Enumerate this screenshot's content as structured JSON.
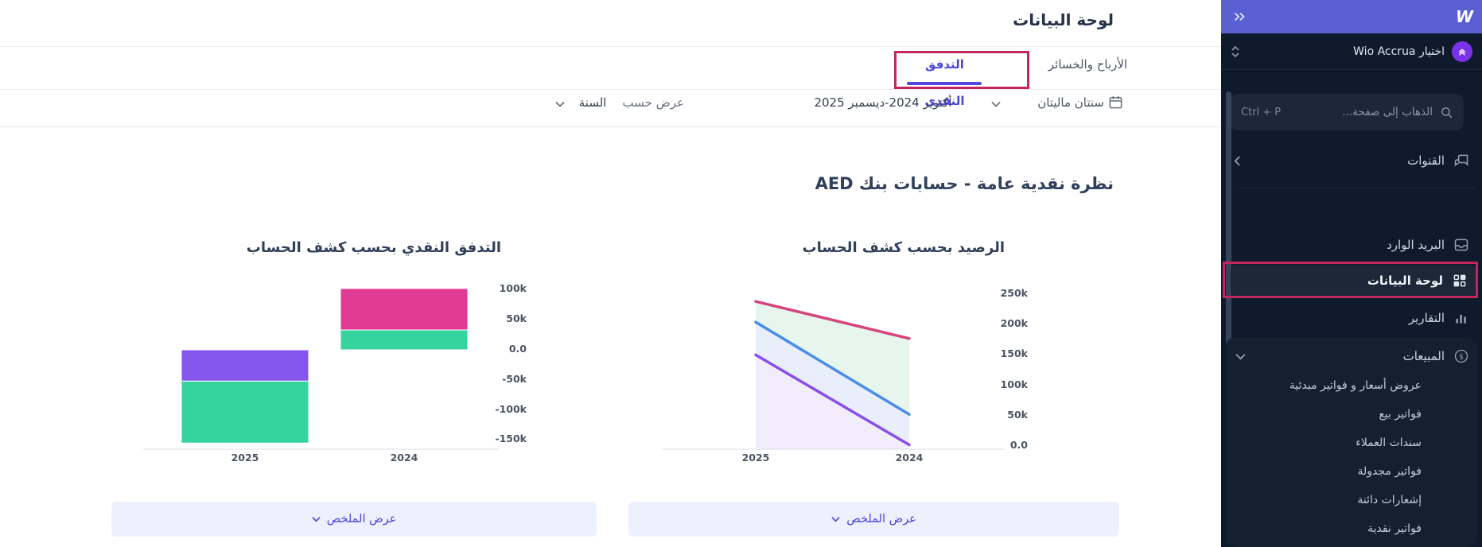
{
  "header": {
    "title": "لوحة البيانات"
  },
  "tabs": [
    {
      "label": "الأرباح والخسائر",
      "active": false
    },
    {
      "label": "التدفق النقدي",
      "active": true
    }
  ],
  "filters": {
    "period_picker_label": "سنتان ماليتان",
    "date_range": "أكتوبر 2024-ديسمبر 2025",
    "view_by_label": "عرض حسب",
    "view_by_value": "السنة"
  },
  "section_title": "نظرة نقدية عامة - حسابات بنك AED",
  "summary_button_label": "عرض الملخص",
  "sidebar": {
    "logo": "W",
    "workspace": {
      "label": "اختيار Wio Accrua"
    },
    "search": {
      "placeholder": "الذهاب إلى صفحة...",
      "shortcut": "Ctrl + P"
    },
    "channels_label": "القنوات",
    "items": [
      {
        "label": "البريد الوارد"
      },
      {
        "label": "لوحة البيانات",
        "selected": true
      },
      {
        "label": "التقارير"
      }
    ],
    "sales": {
      "label": "المبيعات",
      "icon_glyph": "$",
      "children": [
        "عروض أسعار و فواتير مبدئية",
        "فواتير بيع",
        "سندات العملاء",
        "فواتير مجدولة",
        "إشعارات دائنة",
        "فواتير نقدية"
      ]
    }
  },
  "colors": {
    "green": "#35d49e",
    "bar_pink": "#e23b95",
    "bar_purple": "#8456ee",
    "line_pink": "#d6457e",
    "line_blue": "#4a8ce8",
    "line_purple": "#8a4fe8",
    "band_green": "#e6f6ee",
    "band_blue": "#e9effa",
    "band_purple": "#f1edfb",
    "axis": "#d9dde3",
    "accent": "#4f46e5",
    "annotation": "#c3255e",
    "sidebar_bg": "#0f1b2d",
    "topbar_purple": "#5a5fd1"
  },
  "chart_data": [
    {
      "type": "bar",
      "title": "التدفق النقدي بحسب كشف الحساب",
      "categories": [
        "2025",
        "2024"
      ],
      "unit": "thousands AED",
      "stacked": true,
      "bars": [
        {
          "category": "2025",
          "segments": [
            {
              "color": "bar_purple",
              "start": 0,
              "end": -52
            },
            {
              "color": "green",
              "start": -52,
              "end": -155
            }
          ]
        },
        {
          "category": "2024",
          "segments": [
            {
              "color": "bar_pink",
              "start": 102,
              "end": 33
            },
            {
              "color": "green",
              "start": 33,
              "end": 0
            }
          ]
        }
      ],
      "y_ticks": [
        {
          "label": "100k",
          "value": 100
        },
        {
          "label": "50k",
          "value": 50
        },
        {
          "label": "0.0",
          "value": 0
        },
        {
          "label": "-50k",
          "value": -50
        },
        {
          "label": "-100k",
          "value": -100
        },
        {
          "label": "-150k",
          "value": -150
        }
      ],
      "grid": false,
      "legend": false
    },
    {
      "type": "area",
      "title": "الرصيد بحسب كشف الحساب",
      "x": [
        "2025",
        "2024"
      ],
      "unit": "thousands AED",
      "series": [
        {
          "name": "pink",
          "color": "line_pink",
          "values": [
            238,
            177
          ]
        },
        {
          "name": "blue",
          "color": "line_blue",
          "values": [
            204,
            52
          ]
        },
        {
          "name": "purple",
          "color": "line_purple",
          "values": [
            150,
            2
          ]
        }
      ],
      "bands": [
        "band_green",
        "band_blue",
        "band_purple"
      ],
      "y_ticks": [
        {
          "label": "250k",
          "value": 250
        },
        {
          "label": "200k",
          "value": 200
        },
        {
          "label": "150k",
          "value": 150
        },
        {
          "label": "100k",
          "value": 100
        },
        {
          "label": "50k",
          "value": 50
        },
        {
          "label": "0.0",
          "value": 0
        }
      ],
      "grid": false,
      "legend": false
    }
  ]
}
